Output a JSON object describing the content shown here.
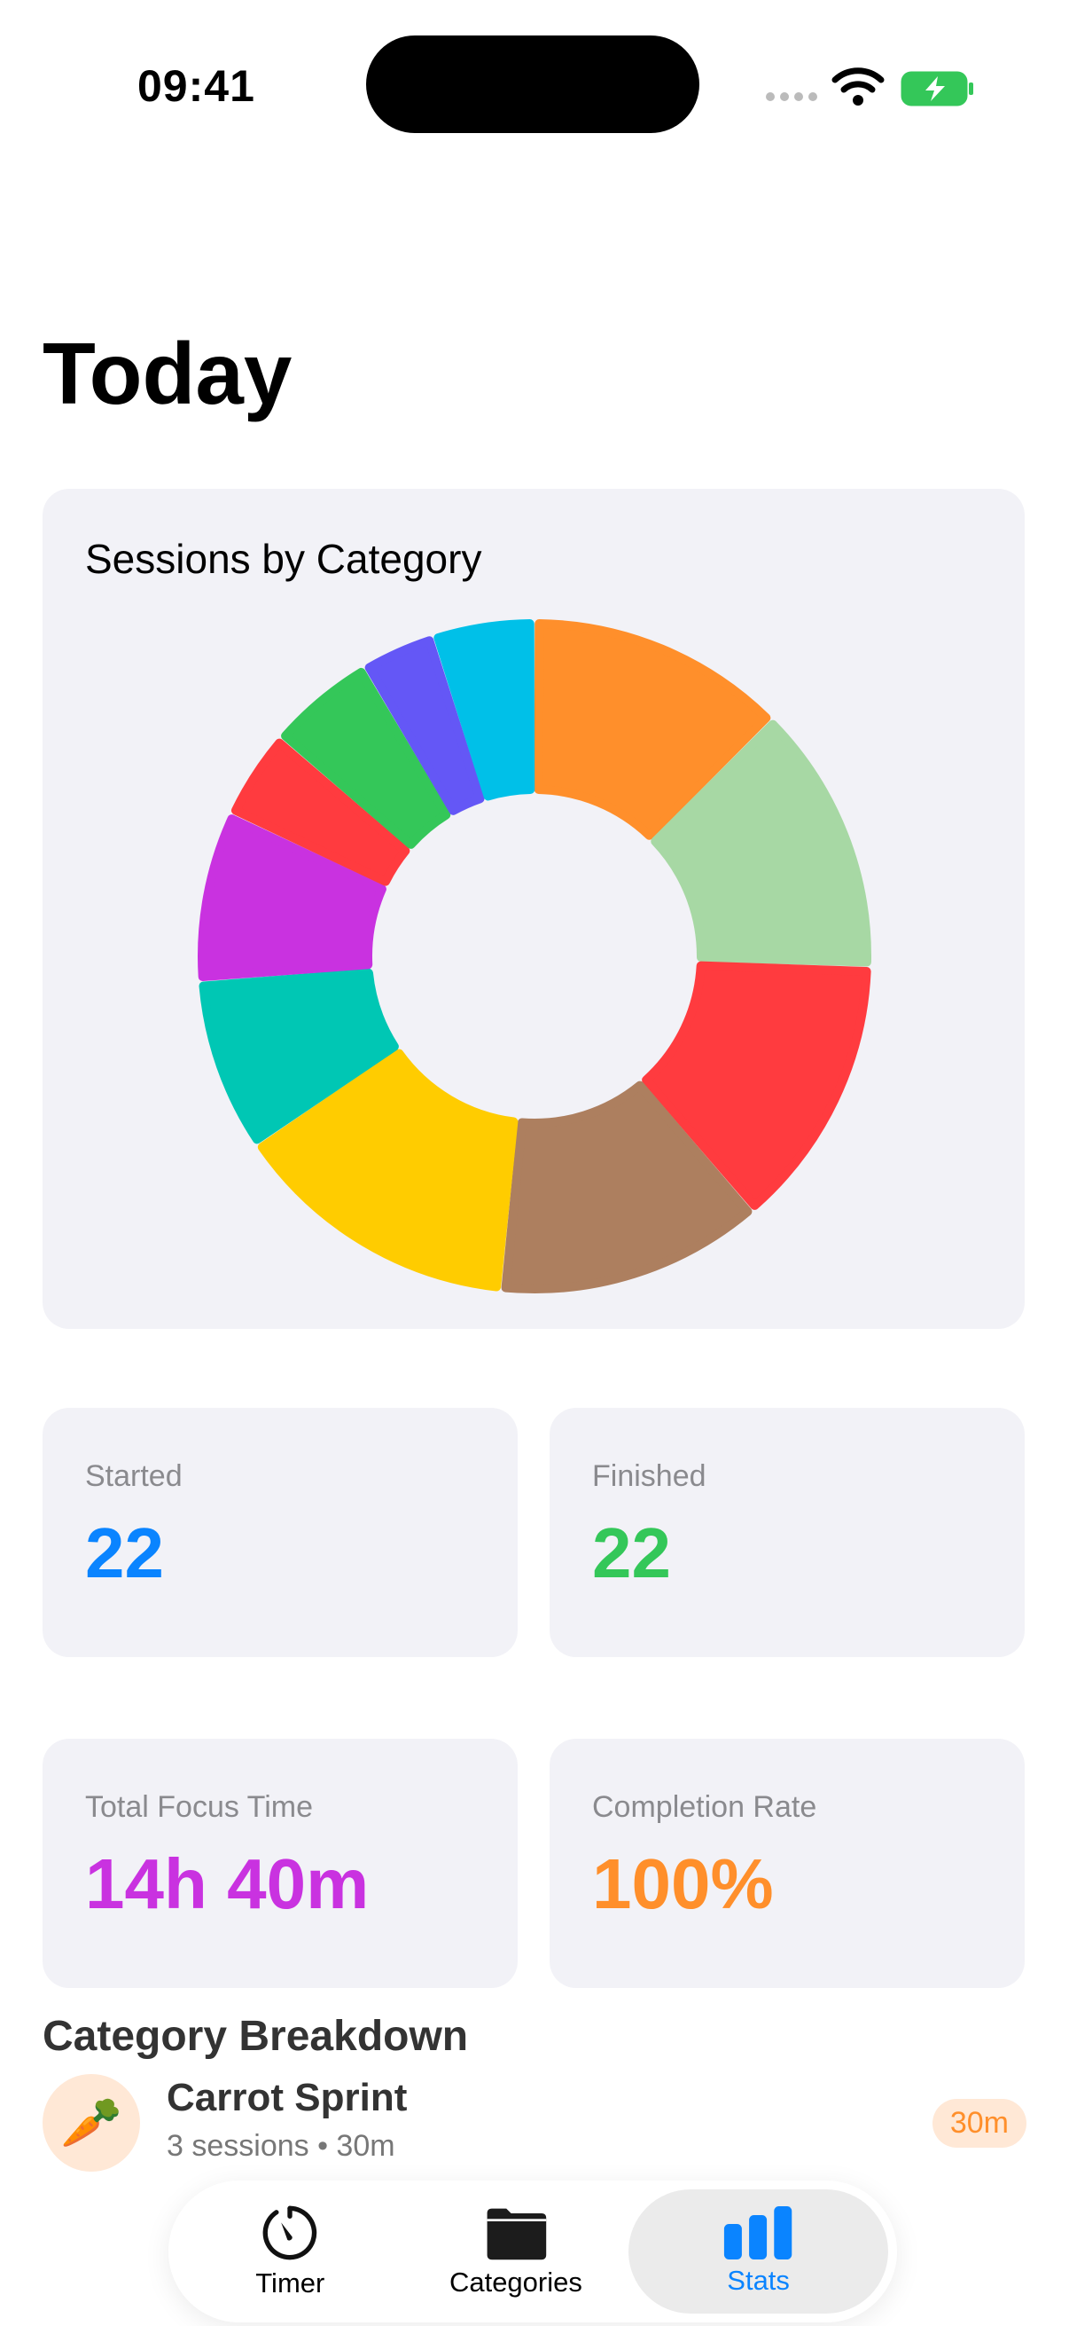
{
  "status_bar": {
    "time": "09:41"
  },
  "page": {
    "title": "Today"
  },
  "chart_data": {
    "type": "pie",
    "title": "Sessions by Category",
    "donut": true,
    "values": [
      12.5,
      13.0,
      13.2,
      12.9,
      13.9,
      8.3,
      8.2,
      4.3,
      5.2,
      3.6,
      4.9
    ],
    "colors": [
      "#ff8f2b",
      "#a7d8a4",
      "#ff3b3f",
      "#ad7f5f",
      "#ffcc00",
      "#00c7b4",
      "#c932e0",
      "#ff3b3f",
      "#34c759",
      "#6457f6",
      "#00c0e8"
    ]
  },
  "stats": [
    {
      "label": "Started",
      "value": "22",
      "color": "#0a84ff"
    },
    {
      "label": "Finished",
      "value": "22",
      "color": "#34c759"
    },
    {
      "label": "Total Focus Time",
      "value": "14h 40m",
      "color": "#c932e0"
    },
    {
      "label": "Completion Rate",
      "value": "100%",
      "color": "#ff8f2b"
    }
  ],
  "breakdown": {
    "title": "Category Breakdown",
    "items": [
      {
        "icon": "carrot-icon",
        "name": "Carrot Sprint",
        "detail": "3 sessions • 30m",
        "time": "30m"
      }
    ]
  },
  "tabbar": {
    "items": [
      {
        "label": "Timer",
        "icon": "timer-icon"
      },
      {
        "label": "Categories",
        "icon": "folder-icon"
      },
      {
        "label": "Stats",
        "icon": "bar-chart-icon"
      }
    ],
    "active": "Stats",
    "accent": "#0a84ff"
  }
}
